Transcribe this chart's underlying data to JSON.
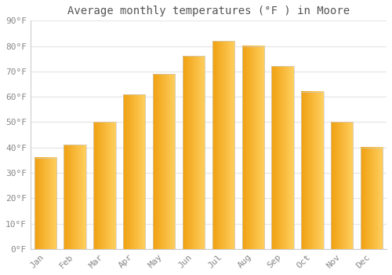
{
  "title": "Average monthly temperatures (°F ) in Moore",
  "months": [
    "Jan",
    "Feb",
    "Mar",
    "Apr",
    "May",
    "Jun",
    "Jul",
    "Aug",
    "Sep",
    "Oct",
    "Nov",
    "Dec"
  ],
  "values": [
    36,
    41,
    50,
    61,
    69,
    76,
    82,
    80,
    72,
    62,
    50,
    40
  ],
  "bar_color_left": "#F0A010",
  "bar_color_right": "#FFD050",
  "background_color": "#FFFFFF",
  "plot_bg_color": "#FFFFFF",
  "grid_color": "#E8E8E8",
  "ylim": [
    0,
    90
  ],
  "yticks": [
    0,
    10,
    20,
    30,
    40,
    50,
    60,
    70,
    80,
    90
  ],
  "ytick_labels": [
    "0°F",
    "10°F",
    "20°F",
    "30°F",
    "40°F",
    "50°F",
    "60°F",
    "70°F",
    "80°F",
    "90°F"
  ],
  "title_fontsize": 10,
  "tick_fontsize": 8,
  "tick_color": "#888888",
  "font_family": "monospace",
  "bar_width": 0.75
}
